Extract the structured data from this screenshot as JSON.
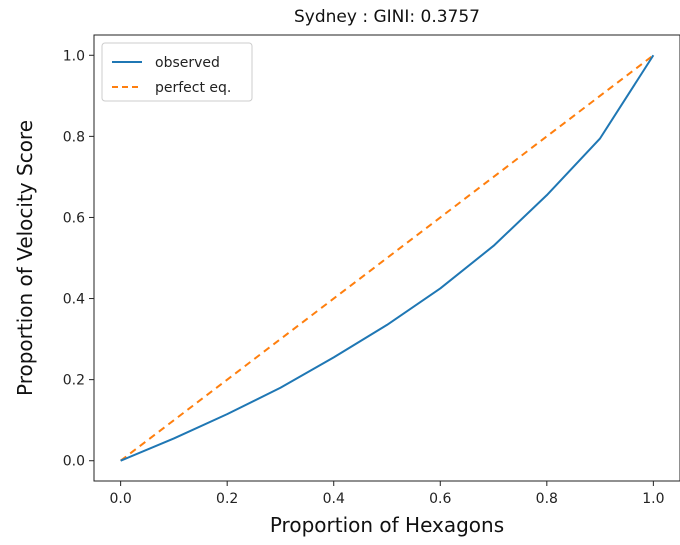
{
  "chart_data": {
    "type": "line",
    "title": "Sydney : GINI: 0.3757",
    "xlabel": "Proportion of Hexagons",
    "ylabel": "Proportion of Velocity Score",
    "xlim": [
      -0.05,
      1.05
    ],
    "ylim": [
      -0.05,
      1.05
    ],
    "xticks": [
      "0.0",
      "0.2",
      "0.4",
      "0.6",
      "0.8",
      "1.0"
    ],
    "yticks": [
      "0.0",
      "0.2",
      "0.4",
      "0.6",
      "0.8",
      "1.0"
    ],
    "grid": false,
    "legend_position": "top-left",
    "series": [
      {
        "name": "observed",
        "color": "#1f77b4",
        "style": "solid",
        "x": [
          0.0,
          0.1,
          0.2,
          0.3,
          0.4,
          0.5,
          0.6,
          0.7,
          0.8,
          0.9,
          1.0
        ],
        "y": [
          0.0,
          0.055,
          0.115,
          0.18,
          0.255,
          0.335,
          0.425,
          0.53,
          0.655,
          0.795,
          1.0
        ]
      },
      {
        "name": "perfect eq.",
        "color": "#ff7f0e",
        "style": "dashed",
        "x": [
          0.0,
          1.0
        ],
        "y": [
          0.0,
          1.0
        ]
      }
    ]
  }
}
